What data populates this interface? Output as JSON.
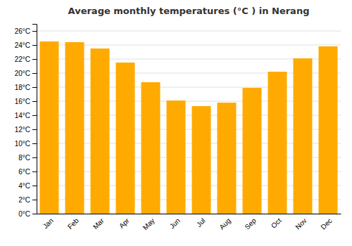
{
  "chart_data": {
    "type": "bar",
    "title": "Average monthly temperatures (°C ) in Nerang",
    "categories": [
      "Jan",
      "Feb",
      "Mar",
      "Apr",
      "May",
      "Jun",
      "Jul",
      "Aug",
      "Sep",
      "Oct",
      "Nov",
      "Dec"
    ],
    "values": [
      24.5,
      24.4,
      23.5,
      21.5,
      18.7,
      16.1,
      15.3,
      15.8,
      17.9,
      20.2,
      22.1,
      23.8
    ],
    "color": "#FFAA00",
    "ylim": [
      0,
      27
    ],
    "yticks": [
      {
        "value": 0,
        "label": "0°C"
      },
      {
        "value": 2,
        "label": "2°C"
      },
      {
        "value": 4,
        "label": "4°C"
      },
      {
        "value": 6,
        "label": "6°C"
      },
      {
        "value": 8,
        "label": "8°C"
      },
      {
        "value": 10,
        "label": "10°C"
      },
      {
        "value": 12,
        "label": "12°C"
      },
      {
        "value": 14,
        "label": "14°C"
      },
      {
        "value": 16,
        "label": "16°C"
      },
      {
        "value": 18,
        "label": "18°C"
      },
      {
        "value": 20,
        "label": "20°C"
      },
      {
        "value": 22,
        "label": "22°C"
      },
      {
        "value": 24,
        "label": "24°C"
      },
      {
        "value": 26,
        "label": "26°C"
      }
    ],
    "grid": true
  }
}
